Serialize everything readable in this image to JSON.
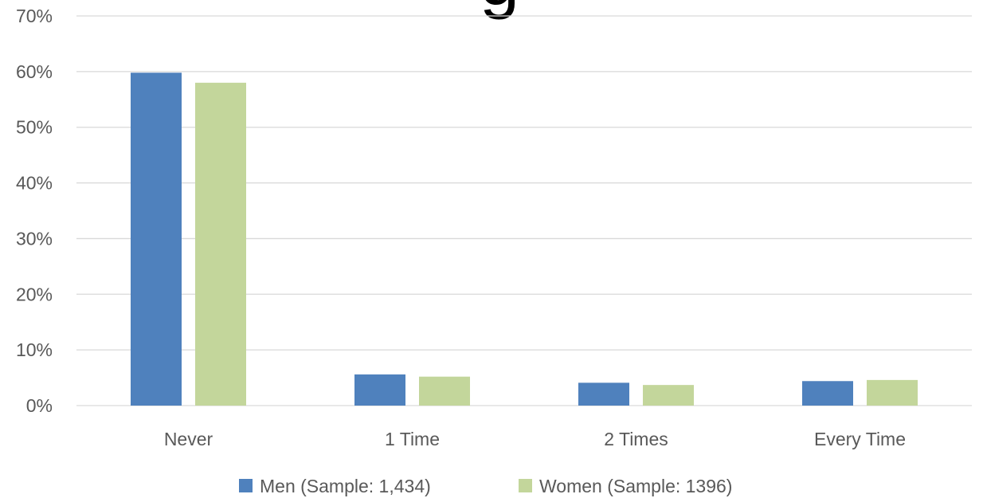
{
  "chart_data": {
    "type": "bar",
    "title_fragment": "g",
    "categories": [
      "Never",
      "1 Time",
      "2 Times",
      "Every Time"
    ],
    "series": [
      {
        "name": "Men (Sample: 1,434)",
        "values": [
          59.8,
          5.6,
          4.1,
          4.4
        ],
        "color": "#4f81bd"
      },
      {
        "name": "Women (Sample: 1396)",
        "values": [
          58.0,
          5.2,
          3.7,
          4.6
        ],
        "color": "#c3d69b"
      }
    ],
    "xlabel": "",
    "ylabel": "",
    "ylim": [
      0,
      70
    ],
    "yticks": [
      "0%",
      "10%",
      "20%",
      "30%",
      "40%",
      "50%",
      "60%",
      "70%"
    ],
    "grid": true,
    "legend_position": "bottom",
    "gridline_color": "#d9d9d9",
    "axis_text_color": "#595959"
  }
}
